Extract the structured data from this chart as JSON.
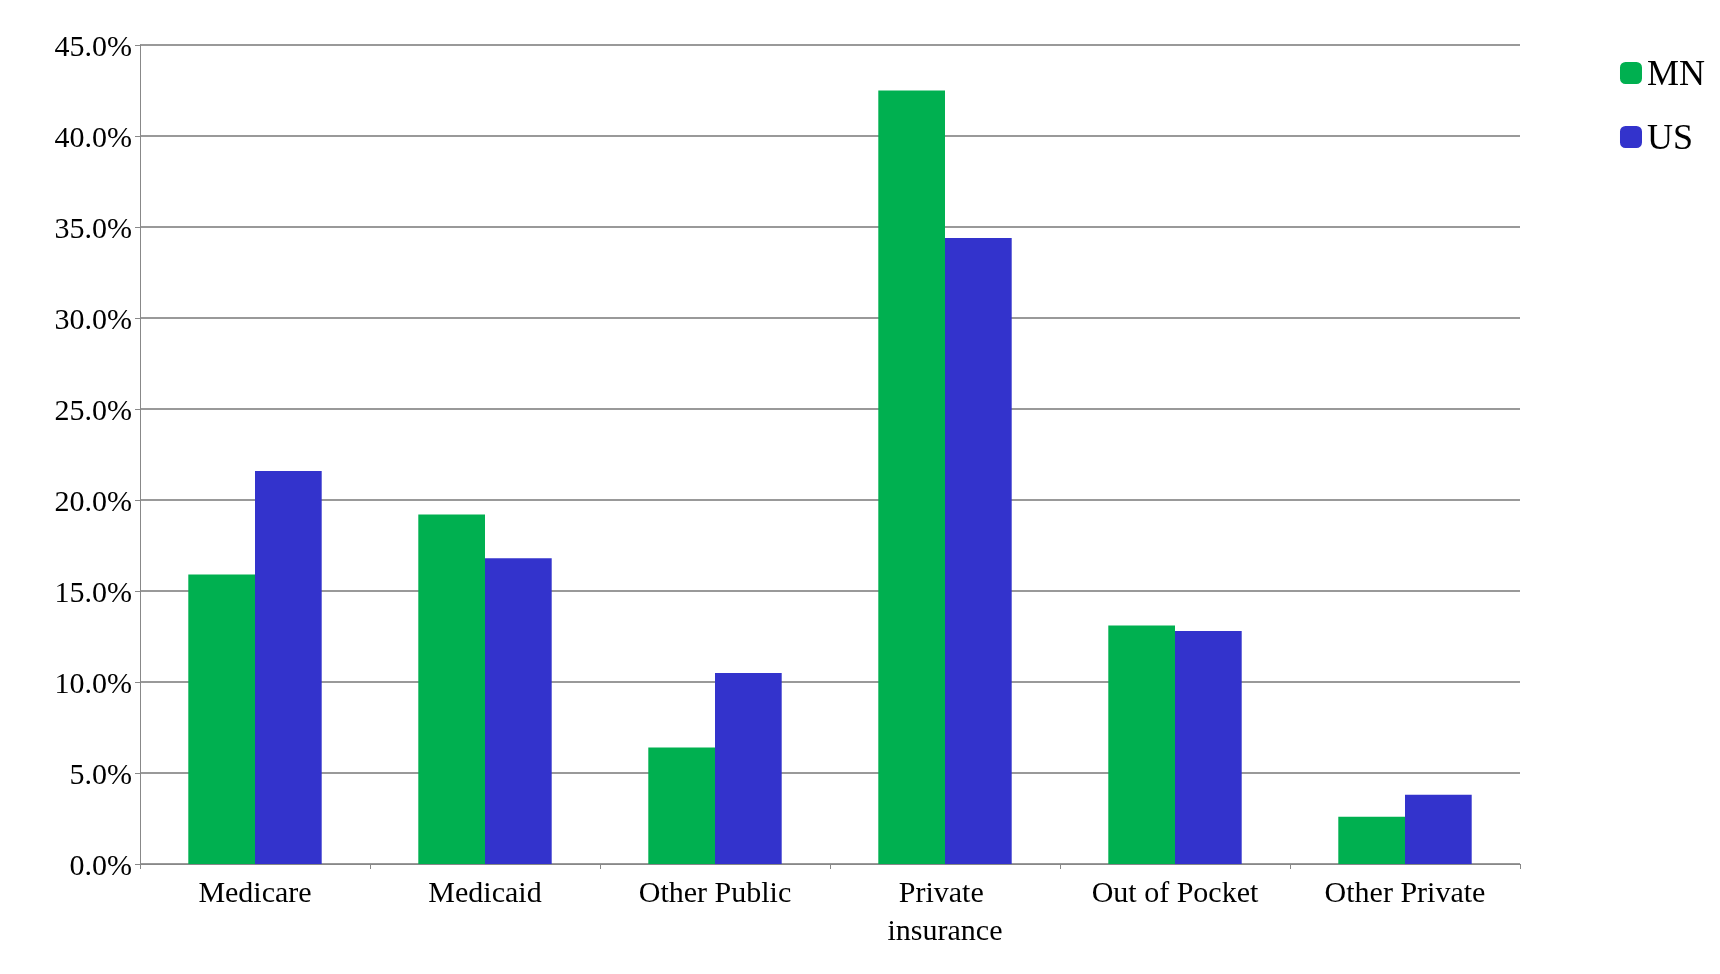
{
  "chart_data": {
    "type": "bar",
    "categories": [
      "Medicare",
      "Medicaid",
      "Other Public",
      "Private insurance",
      "Out of Pocket",
      "Other Private"
    ],
    "series": [
      {
        "name": "MN",
        "color": "#00b050",
        "values": [
          15.9,
          19.2,
          6.4,
          42.5,
          13.1,
          2.6
        ]
      },
      {
        "name": "US",
        "color": "#3333cc",
        "values": [
          21.6,
          16.8,
          10.5,
          34.4,
          12.8,
          3.8
        ]
      }
    ],
    "ylim": [
      0,
      45
    ],
    "yticks": [
      {
        "value": 0,
        "label": "0.0%"
      },
      {
        "value": 5,
        "label": "5.0%"
      },
      {
        "value": 10,
        "label": "10.0%"
      },
      {
        "value": 15,
        "label": "15.0%"
      },
      {
        "value": 20,
        "label": "20.0%"
      },
      {
        "value": 25,
        "label": "25.0%"
      },
      {
        "value": 30,
        "label": "30.0%"
      },
      {
        "value": 35,
        "label": "35.0%"
      },
      {
        "value": 40,
        "label": "40.0%"
      },
      {
        "value": 45,
        "label": "45.0%"
      }
    ],
    "grid": "y",
    "legend": "top right"
  }
}
